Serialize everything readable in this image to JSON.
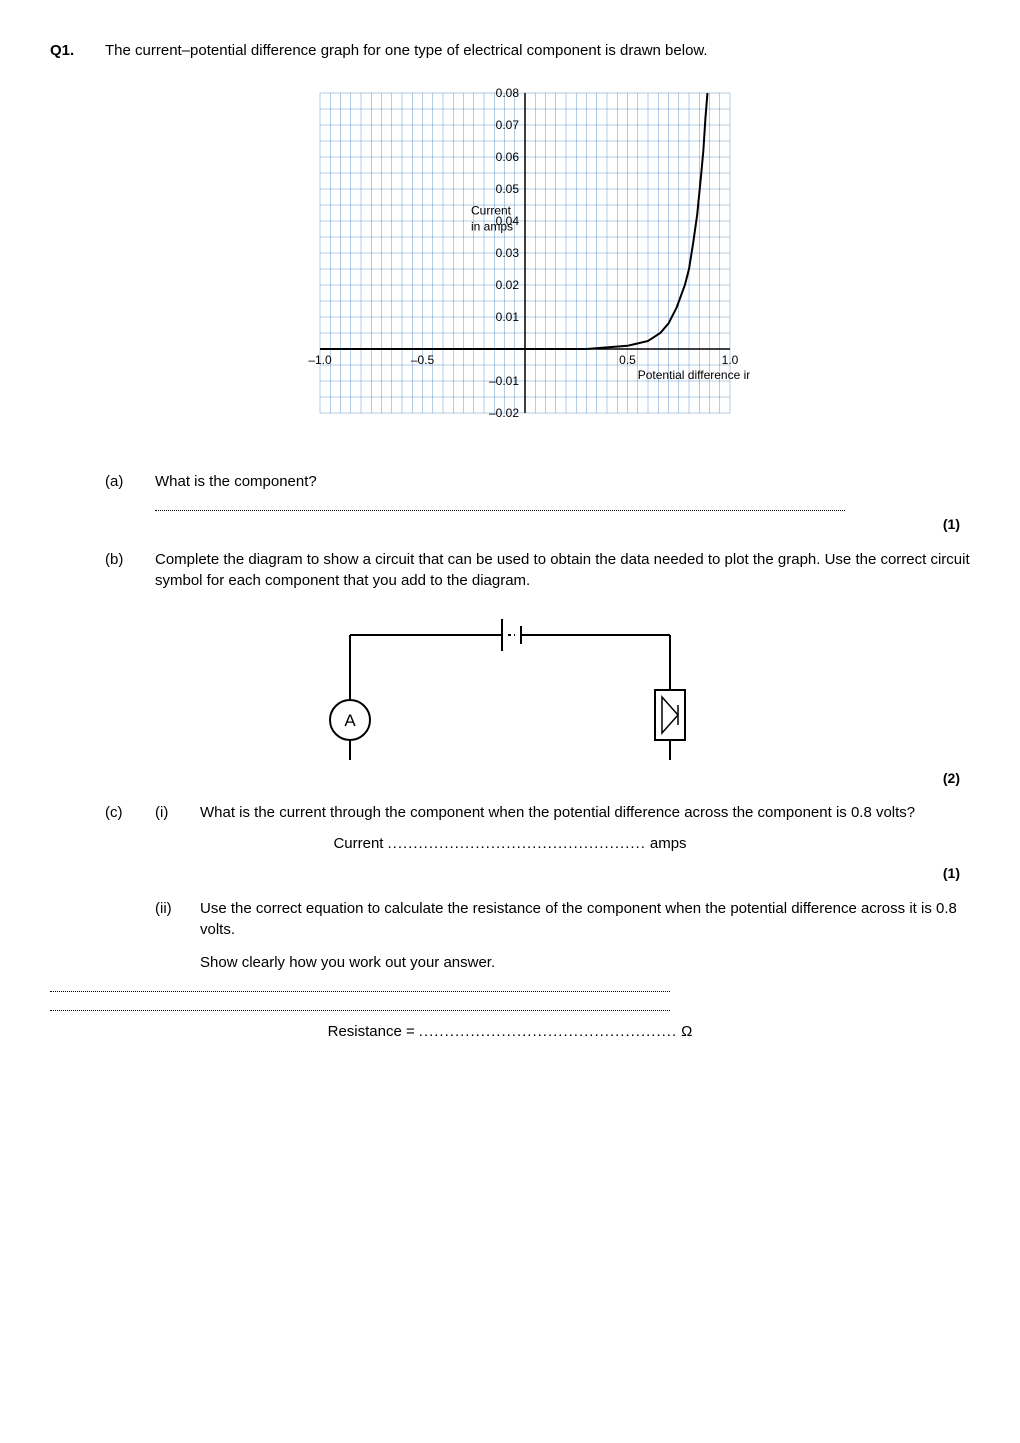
{
  "question": {
    "label": "Q1.",
    "stem": "The current–potential difference graph for one type of electrical component is drawn below."
  },
  "graph": {
    "type": "line",
    "xlabel": "Potential difference in volts",
    "ylabel_top": "Current",
    "ylabel_bottom": "in amps",
    "xlim": [
      -1.0,
      1.0
    ],
    "ylim": [
      -0.02,
      0.08
    ],
    "xticks": [
      -1.0,
      -0.5,
      0.5,
      1.0
    ],
    "xtick_labels": [
      "–1.0",
      "–0.5",
      "0.5",
      "1.0"
    ],
    "yticks": [
      -0.02,
      -0.01,
      0.01,
      0.02,
      0.03,
      0.04,
      0.05,
      0.06,
      0.07,
      0.08
    ],
    "ytick_labels": [
      "–0.02",
      "–0.01",
      "0.01",
      "0.02",
      "0.03",
      "0.04",
      "0.05",
      "0.06",
      "0.07",
      "0.08"
    ],
    "minor_grid_step_x": 0.05,
    "minor_grid_step_y": 0.005,
    "grid_color": "#2f6fb3",
    "axis_color": "#000000",
    "background_color": "#ffffff",
    "curve": {
      "color": "#000000",
      "width": 2,
      "points": [
        [
          -1.0,
          0.0
        ],
        [
          0.0,
          0.0
        ],
        [
          0.3,
          0.0
        ],
        [
          0.5,
          0.001
        ],
        [
          0.6,
          0.0025
        ],
        [
          0.66,
          0.005
        ],
        [
          0.7,
          0.008
        ],
        [
          0.74,
          0.013
        ],
        [
          0.78,
          0.02
        ],
        [
          0.8,
          0.025
        ],
        [
          0.82,
          0.033
        ],
        [
          0.84,
          0.042
        ],
        [
          0.86,
          0.055
        ],
        [
          0.87,
          0.062
        ],
        [
          0.88,
          0.072
        ],
        [
          0.89,
          0.08
        ]
      ]
    }
  },
  "part_a": {
    "label": "(a)",
    "text": "What is the component?",
    "marks": "(1)"
  },
  "part_b": {
    "label": "(b)",
    "text": "Complete the diagram to show a circuit that can be used to obtain the data needed to plot the graph. Use the correct circuit symbol for each component that you add to the diagram.",
    "marks": "(2)",
    "circuit": {
      "ammeter_label": "A",
      "stroke": "#000000",
      "stroke_width": 2
    }
  },
  "part_c": {
    "label": "(c)",
    "i": {
      "label": "(i)",
      "text": "What is the current through the component when the potential difference across the component is 0.8 volts?",
      "answer_prefix": "Current",
      "answer_unit": "amps",
      "marks": "(1)"
    },
    "ii": {
      "label": "(ii)",
      "text": "Use the correct equation to calculate the resistance of the component when the potential difference across it is 0.8 volts.",
      "instruction": "Show clearly how you work out your answer.",
      "answer_prefix": "Resistance =",
      "answer_unit": "Ω"
    }
  }
}
